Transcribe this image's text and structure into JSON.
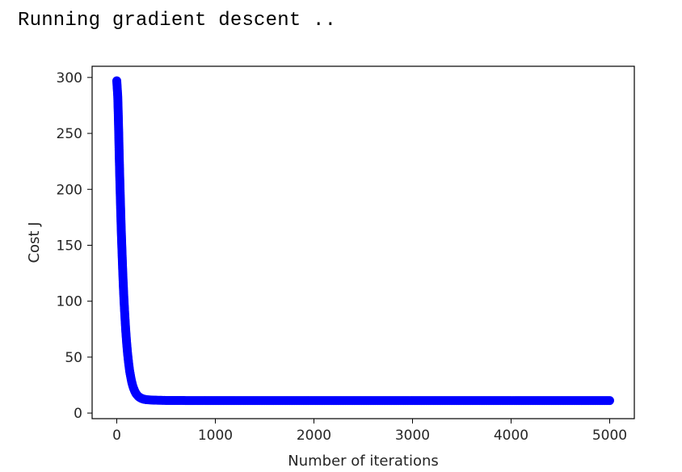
{
  "console": {
    "output_text": "Running gradient descent .."
  },
  "chart_data": {
    "type": "scatter",
    "title": "",
    "xlabel": "Number of iterations",
    "ylabel": "Cost J",
    "xlim": [
      -250,
      5250
    ],
    "ylim": [
      -5,
      310
    ],
    "xticks": [
      0,
      1000,
      2000,
      3000,
      4000,
      5000
    ],
    "yticks": [
      0,
      50,
      100,
      150,
      200,
      250,
      300
    ],
    "xtick_labels": [
      "0",
      "1000",
      "2000",
      "3000",
      "4000",
      "5000"
    ],
    "ytick_labels": [
      "0",
      "50",
      "100",
      "150",
      "200",
      "250",
      "300"
    ],
    "grid": false,
    "legend": "none",
    "series": [
      {
        "color": "#0000ff",
        "marker": "o",
        "x": [
          0,
          5,
          10,
          15,
          20,
          25,
          30,
          35,
          40,
          45,
          50,
          55,
          60,
          65,
          70,
          75,
          80,
          90,
          100,
          110,
          120,
          130,
          140,
          150,
          160,
          170,
          180,
          190,
          200,
          220,
          240,
          260,
          280,
          300,
          330,
          360,
          400,
          450,
          500,
          600,
          700,
          800,
          1000,
          1200,
          1500,
          2000,
          2500,
          3000,
          3500,
          4000,
          4500,
          5000
        ],
        "y": [
          297,
          290,
          283,
          268,
          250,
          230,
          212,
          196,
          180,
          165,
          152,
          140,
          128,
          117,
          107,
          98,
          90,
          75,
          63,
          53,
          45,
          38,
          33,
          28.5,
          25,
          22.3,
          20,
          18.2,
          16.8,
          14.8,
          13.6,
          12.8,
          12.3,
          12,
          11.8,
          11.6,
          11.5,
          11.4,
          11.3,
          11.3,
          11.2,
          11.2,
          11.2,
          11.2,
          11.2,
          11.2,
          11.2,
          11.2,
          11.2,
          11.2,
          11.2,
          11.2
        ]
      }
    ]
  }
}
